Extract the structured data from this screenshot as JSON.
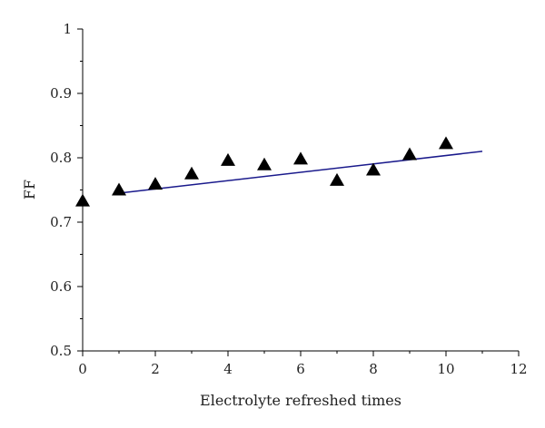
{
  "chart_data": {
    "type": "scatter",
    "title": "",
    "xlabel": "Electrolyte refreshed times",
    "ylabel": "FF",
    "xlim": [
      0,
      12
    ],
    "ylim": [
      0.5,
      1.0
    ],
    "x_ticks": [
      0,
      2,
      4,
      6,
      8,
      10,
      12
    ],
    "y_ticks": [
      0.5,
      0.6,
      0.7,
      0.8,
      0.9,
      1.0
    ],
    "x_tick_labels": [
      "0",
      "2",
      "4",
      "6",
      "8",
      "10",
      "12"
    ],
    "y_tick_labels": [
      "0.5",
      "0.6",
      "0.7",
      "0.8",
      "0.9",
      "1"
    ],
    "grid": false,
    "marker": "triangle",
    "marker_color": "#000000",
    "series": [
      {
        "x": [
          0,
          1,
          2,
          3,
          4,
          5,
          6,
          7,
          8,
          9,
          10
        ],
        "y": [
          0.733,
          0.75,
          0.759,
          0.775,
          0.796,
          0.789,
          0.798,
          0.765,
          0.781,
          0.805,
          0.822
        ]
      }
    ],
    "fit_line": {
      "color": "#1a1a8c",
      "x": [
        1,
        11
      ],
      "y": [
        0.745,
        0.81
      ]
    }
  }
}
